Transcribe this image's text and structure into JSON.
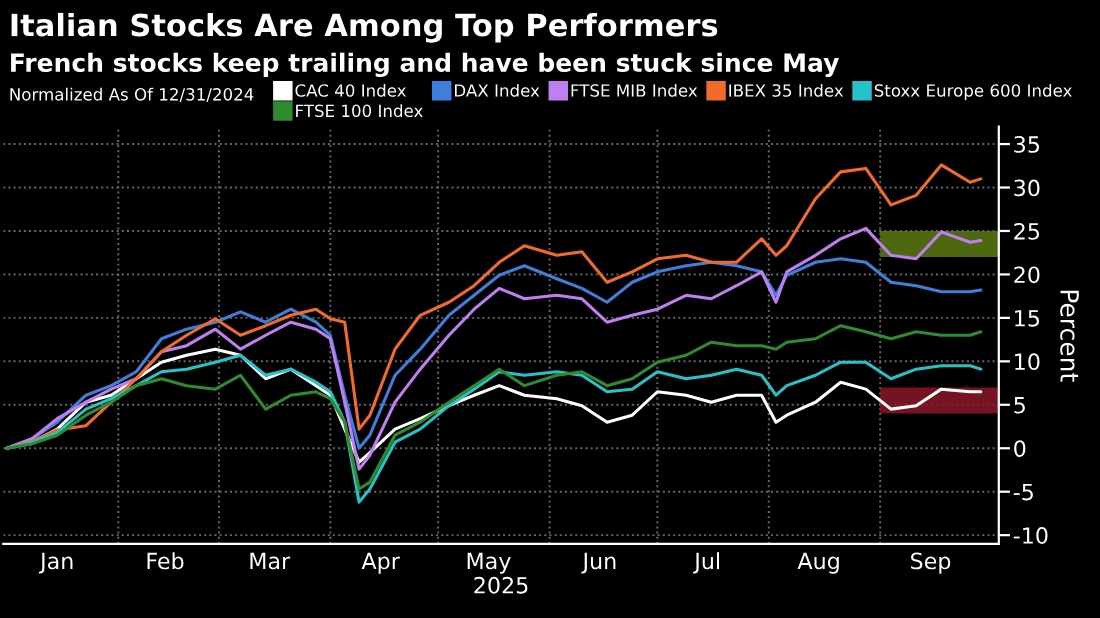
{
  "chart_data": {
    "type": "line",
    "title": "Italian Stocks Are Among Top Performers",
    "subtitle": "French stocks keep trailing and have been stuck since May",
    "annotations": [
      "Normalized As Of 12/31/2024"
    ],
    "xlabel": "2025",
    "ylabel": "Percent",
    "x": [
      "2025-01-01",
      "2025-01-08",
      "2025-01-15",
      "2025-01-23",
      "2025-01-30",
      "2025-02-06",
      "2025-02-13",
      "2025-02-20",
      "2025-02-28",
      "2025-03-07",
      "2025-03-14",
      "2025-03-21",
      "2025-03-28",
      "2025-04-01",
      "2025-04-05",
      "2025-04-09",
      "2025-04-12",
      "2025-04-19",
      "2025-04-26",
      "2025-05-04",
      "2025-05-11",
      "2025-05-18",
      "2025-05-25",
      "2025-06-03",
      "2025-06-10",
      "2025-06-17",
      "2025-06-24",
      "2025-07-01",
      "2025-07-09",
      "2025-07-16",
      "2025-07-23",
      "2025-07-30",
      "2025-08-03",
      "2025-08-06",
      "2025-08-14",
      "2025-08-21",
      "2025-08-28",
      "2025-09-04",
      "2025-09-11",
      "2025-09-18",
      "2025-09-26",
      "2025-09-29"
    ],
    "series": [
      {
        "name": "CAC 40 Index",
        "color": "#ffffff",
        "values": [
          0,
          0.7,
          2.2,
          5.3,
          6.1,
          8,
          9.9,
          10.7,
          11.4,
          10.7,
          8,
          9.1,
          7.2,
          6.1,
          2.2,
          -1.6,
          -0.5,
          2.2,
          3.4,
          4.9,
          6.1,
          7.2,
          6.1,
          5.7,
          4.9,
          3,
          3.8,
          6.5,
          6.1,
          5.3,
          6.1,
          6.1,
          3,
          3.8,
          5.3,
          7.6,
          6.8,
          4.5,
          4.9,
          6.8,
          6.5,
          6.5
        ]
      },
      {
        "name": "DAX Index",
        "color": "#3f7fd9",
        "values": [
          0,
          1.1,
          3,
          6.1,
          7.2,
          8.8,
          12.6,
          13.7,
          14.5,
          15.7,
          14.5,
          16,
          14.5,
          13,
          6.1,
          0,
          1.5,
          8.4,
          11.4,
          15.3,
          17.6,
          19.9,
          21,
          19.5,
          18.4,
          16.8,
          19.1,
          20.3,
          21,
          21.4,
          21,
          20.3,
          17.6,
          19.9,
          21.4,
          21.8,
          21.4,
          19.1,
          18.7,
          18,
          18,
          18.2
        ]
      },
      {
        "name": "FTSE MIB Index",
        "color": "#c07ff0",
        "values": [
          0,
          1.1,
          3.4,
          5.3,
          6.8,
          8,
          11.1,
          11.8,
          13.7,
          11.4,
          13,
          14.5,
          13.7,
          12.6,
          5.3,
          -2.4,
          -0.8,
          5.3,
          9.1,
          13,
          16,
          18.4,
          17.2,
          17.6,
          17.2,
          14.5,
          15.3,
          16,
          17.6,
          17.2,
          18.7,
          20.3,
          16.8,
          20.3,
          22.2,
          24.1,
          25.3,
          22.2,
          21.8,
          24.9,
          23.7,
          23.9
        ]
      },
      {
        "name": "IBEX 35 Index",
        "color": "#f26b2a",
        "values": [
          0,
          0.8,
          2.1,
          2.6,
          5.3,
          8,
          11.1,
          13,
          14.9,
          13,
          14.1,
          15.3,
          16,
          14.9,
          14.5,
          2.2,
          3.8,
          11.4,
          15.3,
          16.8,
          18.7,
          21.4,
          23.3,
          22.2,
          22.6,
          19.1,
          20.3,
          21.8,
          22.2,
          21.4,
          21.4,
          24.1,
          22.2,
          23.3,
          28.7,
          31.8,
          32.2,
          28,
          29.1,
          32.6,
          30.6,
          31
        ]
      },
      {
        "name": "Stoxx Europe 600 Index",
        "color": "#27c2c9",
        "values": [
          0,
          0.7,
          1.8,
          4.5,
          5.7,
          7.2,
          8.8,
          9.1,
          9.9,
          10.7,
          8.4,
          9.1,
          7.6,
          6.5,
          3,
          -6.2,
          -4.7,
          0.7,
          2.2,
          4.9,
          6.8,
          8.8,
          8.4,
          8.8,
          8.4,
          6.5,
          6.8,
          8.8,
          8,
          8.4,
          9.1,
          8.4,
          6.1,
          7.2,
          8.4,
          9.9,
          9.9,
          8,
          9.1,
          9.5,
          9.5,
          9.1
        ]
      },
      {
        "name": "FTSE 100 Index",
        "color": "#2e8b2e",
        "values": [
          0,
          0.5,
          1.5,
          3.8,
          5.3,
          7.2,
          8,
          7.2,
          6.8,
          8.4,
          4.5,
          6.1,
          6.5,
          5.7,
          3,
          -4.7,
          -3.9,
          1.5,
          3,
          5.3,
          7.2,
          9.1,
          7.2,
          8.4,
          8.8,
          7.2,
          8,
          9.9,
          10.7,
          12.2,
          11.8,
          11.8,
          11.4,
          12.2,
          12.6,
          14.1,
          13.4,
          12.6,
          13.4,
          13,
          13,
          13.4
        ]
      }
    ],
    "bands": [
      {
        "axis": "y",
        "from": 22,
        "to": 25,
        "color": "#5a7a10"
      },
      {
        "axis": "y",
        "from": 4,
        "to": 7,
        "color": "#8a1628"
      }
    ],
    "xlim": [
      "2024-12-31",
      "2025-10-04"
    ],
    "xticks": [
      {
        "value": "2025-01-15",
        "label": "Jan"
      },
      {
        "value": "2025-02-01",
        "label": null
      },
      {
        "value": "2025-02-14",
        "label": "Feb"
      },
      {
        "value": "2025-03-01",
        "label": null
      },
      {
        "value": "2025-03-15",
        "label": "Mar"
      },
      {
        "value": "2025-04-01",
        "label": null
      },
      {
        "value": "2025-04-15",
        "label": "Apr"
      },
      {
        "value": "2025-05-01",
        "label": null
      },
      {
        "value": "2025-05-15",
        "label": "May"
      },
      {
        "value": "2025-06-01",
        "label": null
      },
      {
        "value": "2025-06-15",
        "label": "Jun"
      },
      {
        "value": "2025-07-01",
        "label": null
      },
      {
        "value": "2025-07-15",
        "label": "Jul"
      },
      {
        "value": "2025-08-01",
        "label": null
      },
      {
        "value": "2025-08-15",
        "label": "Aug"
      },
      {
        "value": "2025-09-01",
        "label": null
      },
      {
        "value": "2025-09-15",
        "label": "Sep"
      }
    ],
    "ylim": [
      -11,
      37
    ],
    "yticks": [
      -10,
      -5,
      0,
      5,
      10,
      15,
      20,
      25,
      30,
      35
    ],
    "grid": true,
    "legend": "top",
    "marker": "none",
    "line_style": "solid"
  }
}
